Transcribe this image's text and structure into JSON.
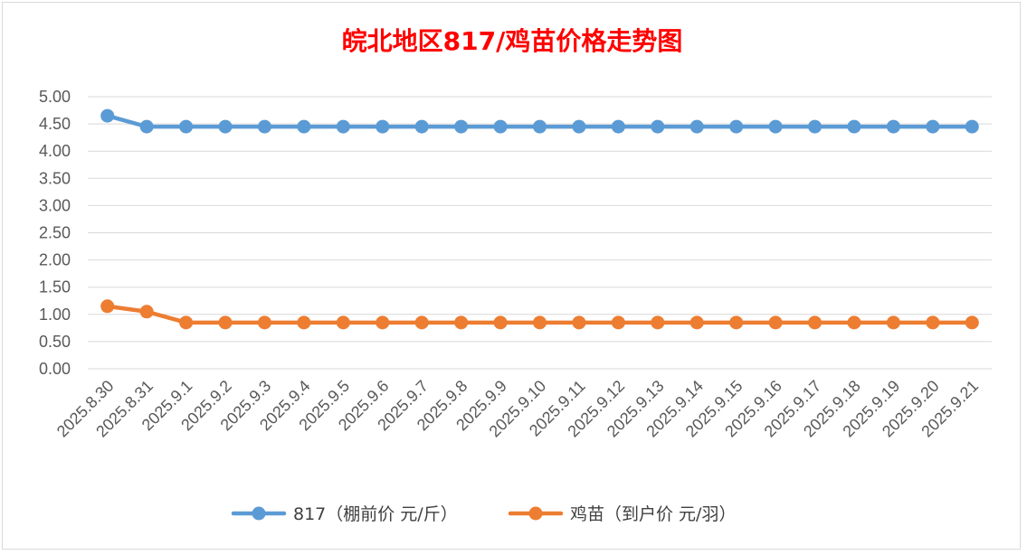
{
  "chart_data": {
    "type": "line",
    "title": "皖北地区817/鸡苗价格走势图",
    "xlabel": "",
    "ylabel": "",
    "ylim": [
      0,
      5
    ],
    "y_tick_labels": [
      "0.00",
      "0.50",
      "1.00",
      "1.50",
      "2.00",
      "2.50",
      "3.00",
      "3.50",
      "4.00",
      "4.50",
      "5.00"
    ],
    "grid": "horizontal",
    "legend_position": "bottom",
    "categories": [
      "2025.8.30",
      "2025.8.31",
      "2025.9.1",
      "2025.9.2",
      "2025.9.3",
      "2025.9.4",
      "2025.9.5",
      "2025.9.6",
      "2025.9.7",
      "2025.9.8",
      "2025.9.9",
      "2025.9.10",
      "2025.9.11",
      "2025.9.12",
      "2025.9.13",
      "2025.9.14",
      "2025.9.15",
      "2025.9.16",
      "2025.9.17",
      "2025.9.18",
      "2025.9.19",
      "2025.9.20",
      "2025.9.21"
    ],
    "series": [
      {
        "name": "817（棚前价 元/斤）",
        "color": "#5b9bd5",
        "values": [
          4.65,
          4.45,
          4.45,
          4.45,
          4.45,
          4.45,
          4.45,
          4.45,
          4.45,
          4.45,
          4.45,
          4.45,
          4.45,
          4.45,
          4.45,
          4.45,
          4.45,
          4.45,
          4.45,
          4.45,
          4.45,
          4.45,
          4.45
        ]
      },
      {
        "name": "鸡苗（到户价 元/羽）",
        "color": "#ed7d31",
        "values": [
          1.15,
          1.05,
          0.85,
          0.85,
          0.85,
          0.85,
          0.85,
          0.85,
          0.85,
          0.85,
          0.85,
          0.85,
          0.85,
          0.85,
          0.85,
          0.85,
          0.85,
          0.85,
          0.85,
          0.85,
          0.85,
          0.85,
          0.85
        ]
      }
    ]
  }
}
